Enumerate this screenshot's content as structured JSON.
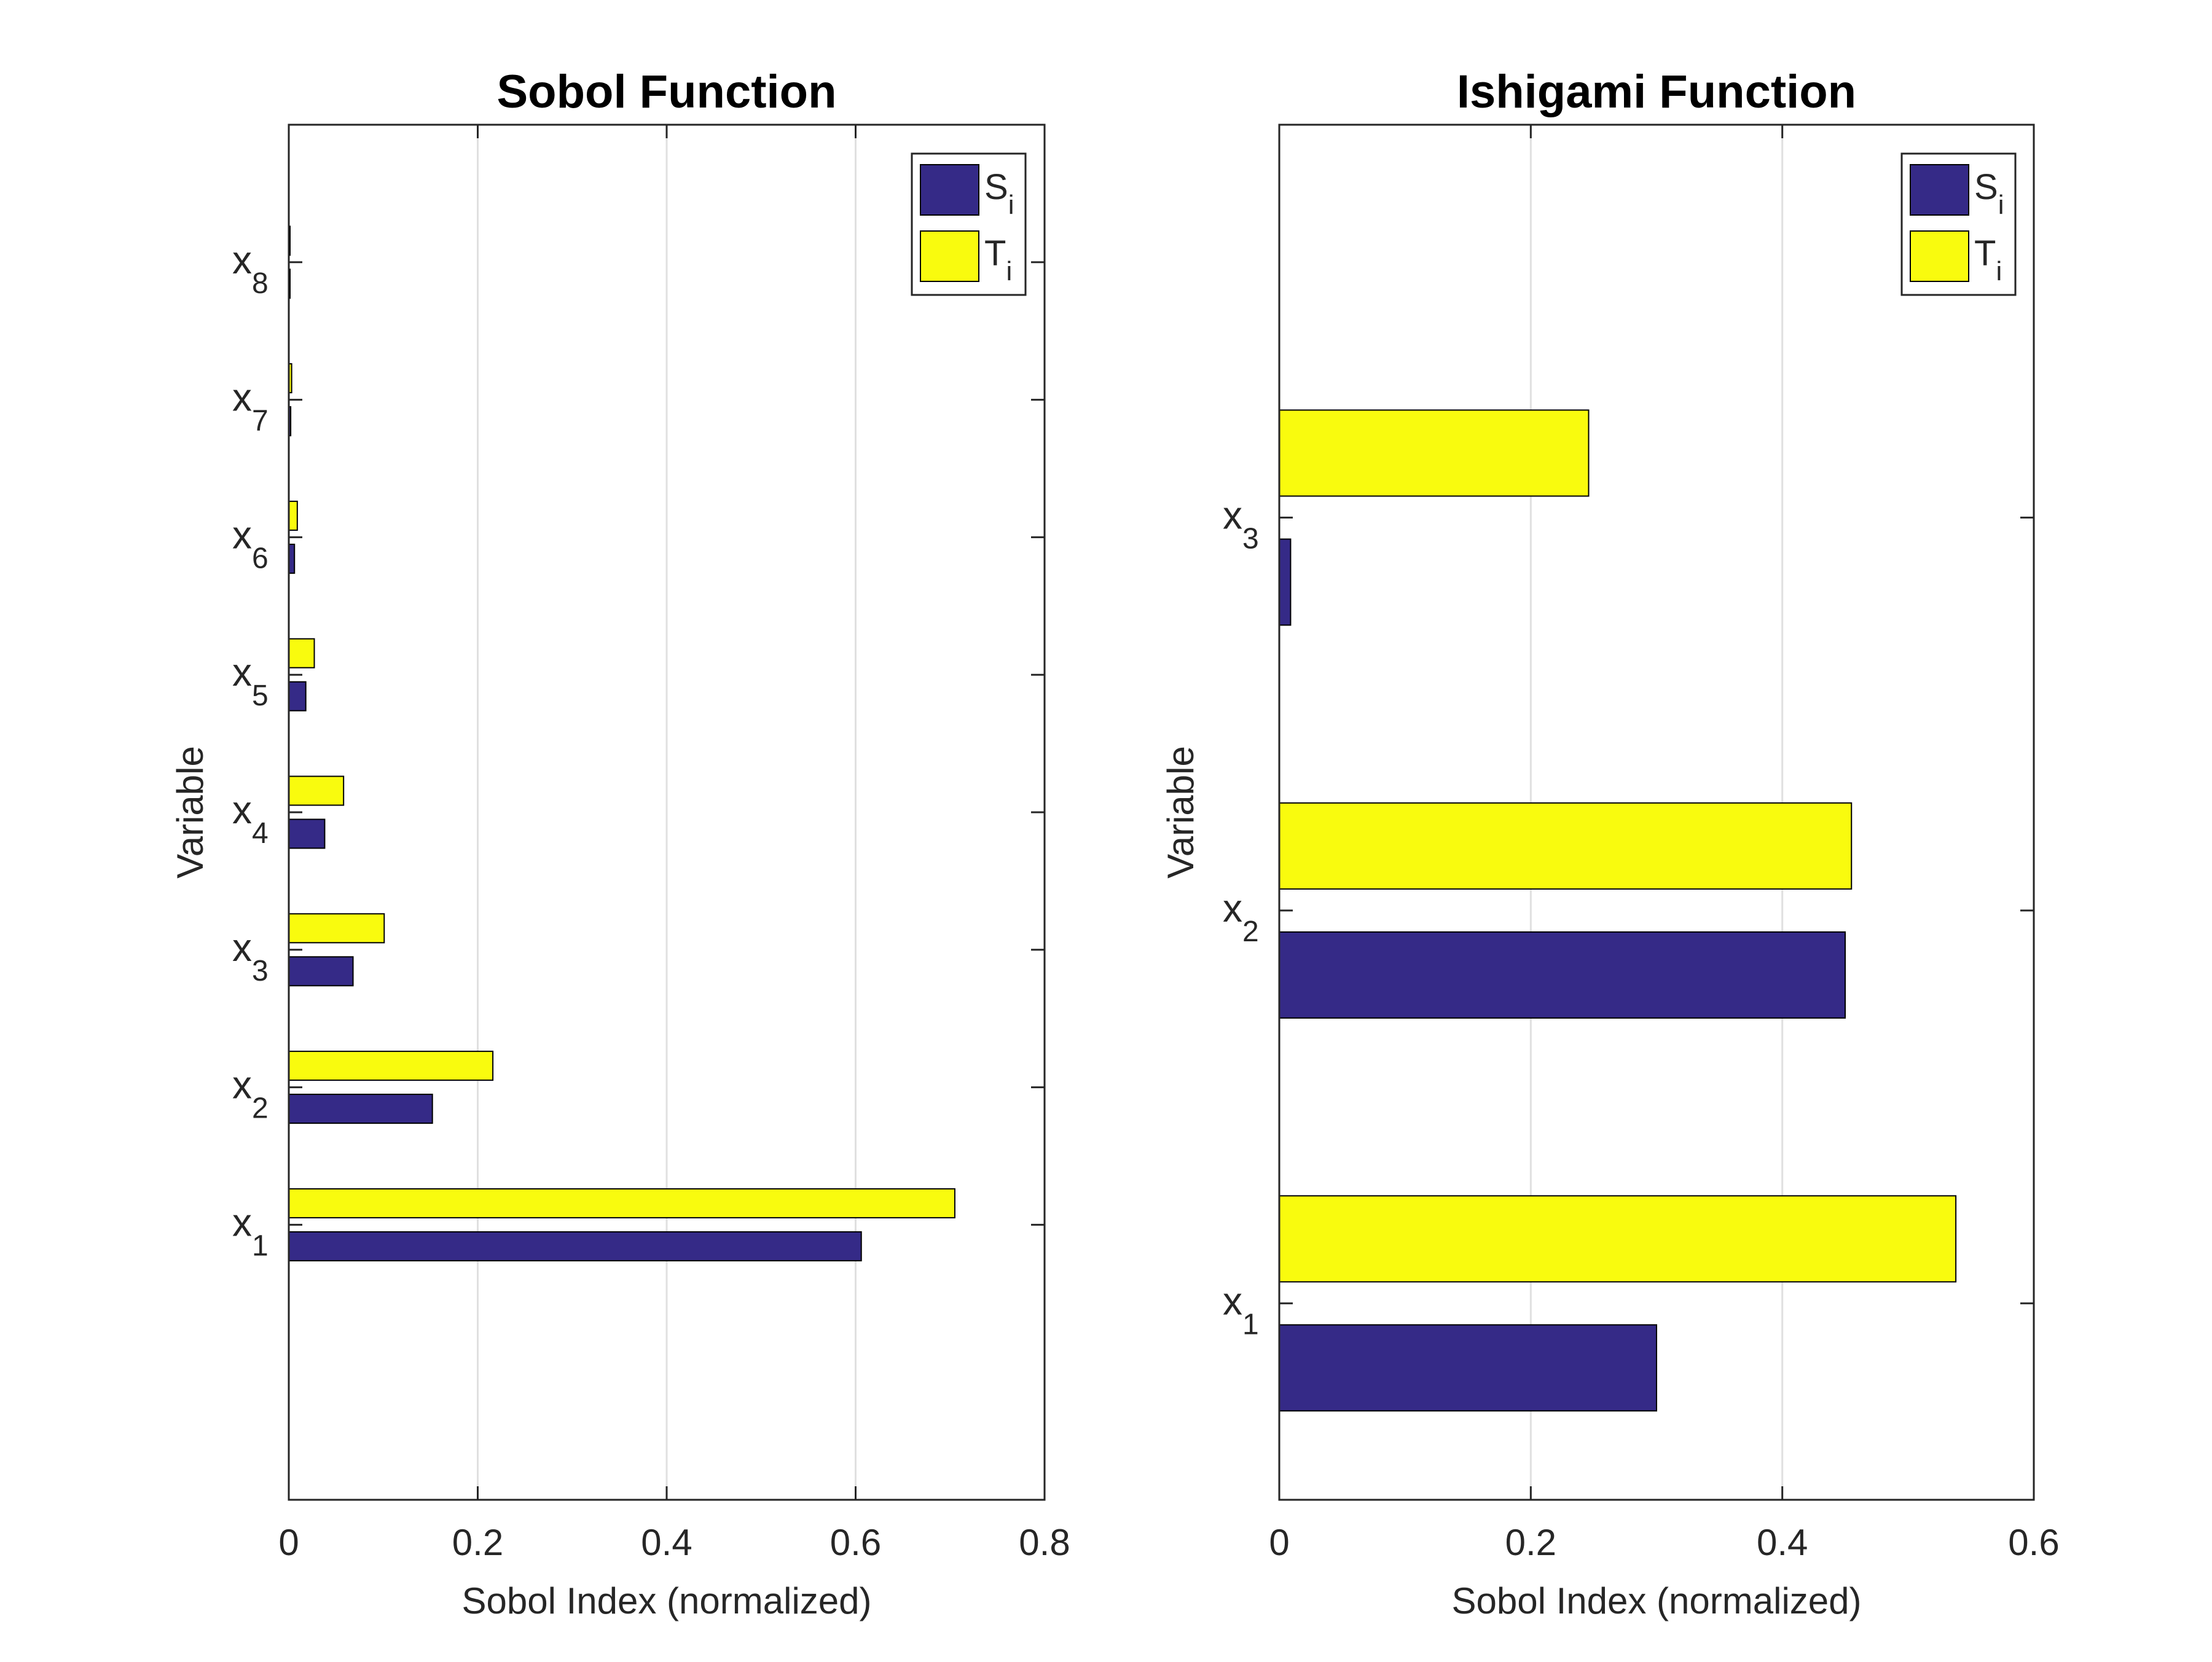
{
  "colors": {
    "S": "#352a87",
    "T": "#f9fb0e",
    "grid": "#e0e0e0",
    "axis": "#262626"
  },
  "chart_data": [
    {
      "type": "bar",
      "orientation": "horizontal",
      "title": "Sobol Function",
      "xlabel": "Sobol Index (normalized)",
      "ylabel": "Variable",
      "xlim": [
        0,
        0.8
      ],
      "xticks": [
        0,
        0.2,
        0.4,
        0.6,
        0.8
      ],
      "xticklabels": [
        "0",
        "0.2",
        "0.4",
        "0.6",
        "0.8"
      ],
      "categories": [
        "x1",
        "x2",
        "x3",
        "x4",
        "x5",
        "x6",
        "x7",
        "x8"
      ],
      "category_base": [
        "x",
        "x",
        "x",
        "x",
        "x",
        "x",
        "x",
        "x"
      ],
      "category_sub": [
        "1",
        "2",
        "3",
        "4",
        "5",
        "6",
        "7",
        "8"
      ],
      "grid": "vertical",
      "legend_position": "top-right",
      "series": [
        {
          "name": "Si",
          "label_base": "S",
          "label_sub": "i",
          "color": "#352a87",
          "values": [
            0.606,
            0.152,
            0.068,
            0.038,
            0.018,
            0.006,
            0.002,
            0.001
          ]
        },
        {
          "name": "Ti",
          "label_base": "T",
          "label_sub": "i",
          "color": "#f9fb0e",
          "values": [
            0.705,
            0.216,
            0.101,
            0.058,
            0.027,
            0.009,
            0.003,
            0.001
          ]
        }
      ]
    },
    {
      "type": "bar",
      "orientation": "horizontal",
      "title": "Ishigami Function",
      "xlabel": "Sobol Index (normalized)",
      "ylabel": "Variable",
      "xlim": [
        0,
        0.6
      ],
      "xticks": [
        0,
        0.2,
        0.4,
        0.6
      ],
      "xticklabels": [
        "0",
        "0.2",
        "0.4",
        "0.6"
      ],
      "categories": [
        "x1",
        "x2",
        "x3"
      ],
      "category_base": [
        "x",
        "x",
        "x"
      ],
      "category_sub": [
        "1",
        "2",
        "3"
      ],
      "grid": "vertical",
      "legend_position": "top-right",
      "series": [
        {
          "name": "Si",
          "label_base": "S",
          "label_sub": "i",
          "color": "#352a87",
          "values": [
            0.3,
            0.45,
            0.009
          ]
        },
        {
          "name": "Ti",
          "label_base": "T",
          "label_sub": "i",
          "color": "#f9fb0e",
          "values": [
            0.538,
            0.455,
            0.246
          ]
        }
      ]
    }
  ]
}
